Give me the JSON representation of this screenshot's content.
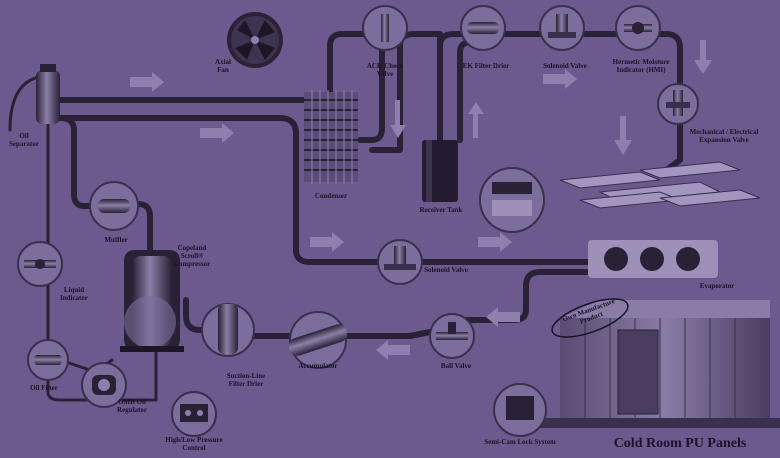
{
  "labels": {
    "axial_fan": [
      "Axial",
      "Fan"
    ],
    "ack_check_valve": [
      "ACK Check",
      "Valve"
    ],
    "ek_filter_drier": "EK Filter Drier",
    "solenoid_valve_top": "Solenoid Valve",
    "moisture_indicator": [
      "Hermetic Moisture",
      "Indicator (HMI)"
    ],
    "expansion_valve": [
      "Mechanical / Electrical",
      "Expansion Valve"
    ],
    "oil_separator": [
      "Oil",
      "Separator"
    ],
    "condenser": "Condenser",
    "receiver_tank": "Receiver Tank",
    "muffler": "Muffler",
    "compressor": [
      "Copeland",
      "Scroll®",
      "Compressor"
    ],
    "solenoid_valve_mid": "Solenoid Valve",
    "evaporator": "Evaporator",
    "liquid_indicator": [
      "Liquid",
      "Indicator"
    ],
    "oil_filter": "Oil Filter",
    "omb_oil_regulator": [
      "OMB Oil",
      "Regulator"
    ],
    "suction_filter_drier": [
      "Suction-Line",
      "Filter Drier"
    ],
    "accumulator": "Accumulator",
    "ball_valve": "Ball Valve",
    "pressure_control": [
      "High/Low Pressure",
      "Control"
    ],
    "lock_system": "Semi-Cam Lock System",
    "cold_room_panels": "Cold Room PU Panels",
    "own_manufacture": [
      "Own Manufacture",
      "Product"
    ]
  },
  "colors": {
    "background": "#6c5a8e",
    "pipe": "#2b2136",
    "component": "#3a2f4d",
    "highlight": "#9d8fb8",
    "arrow": "#8f7fae"
  }
}
